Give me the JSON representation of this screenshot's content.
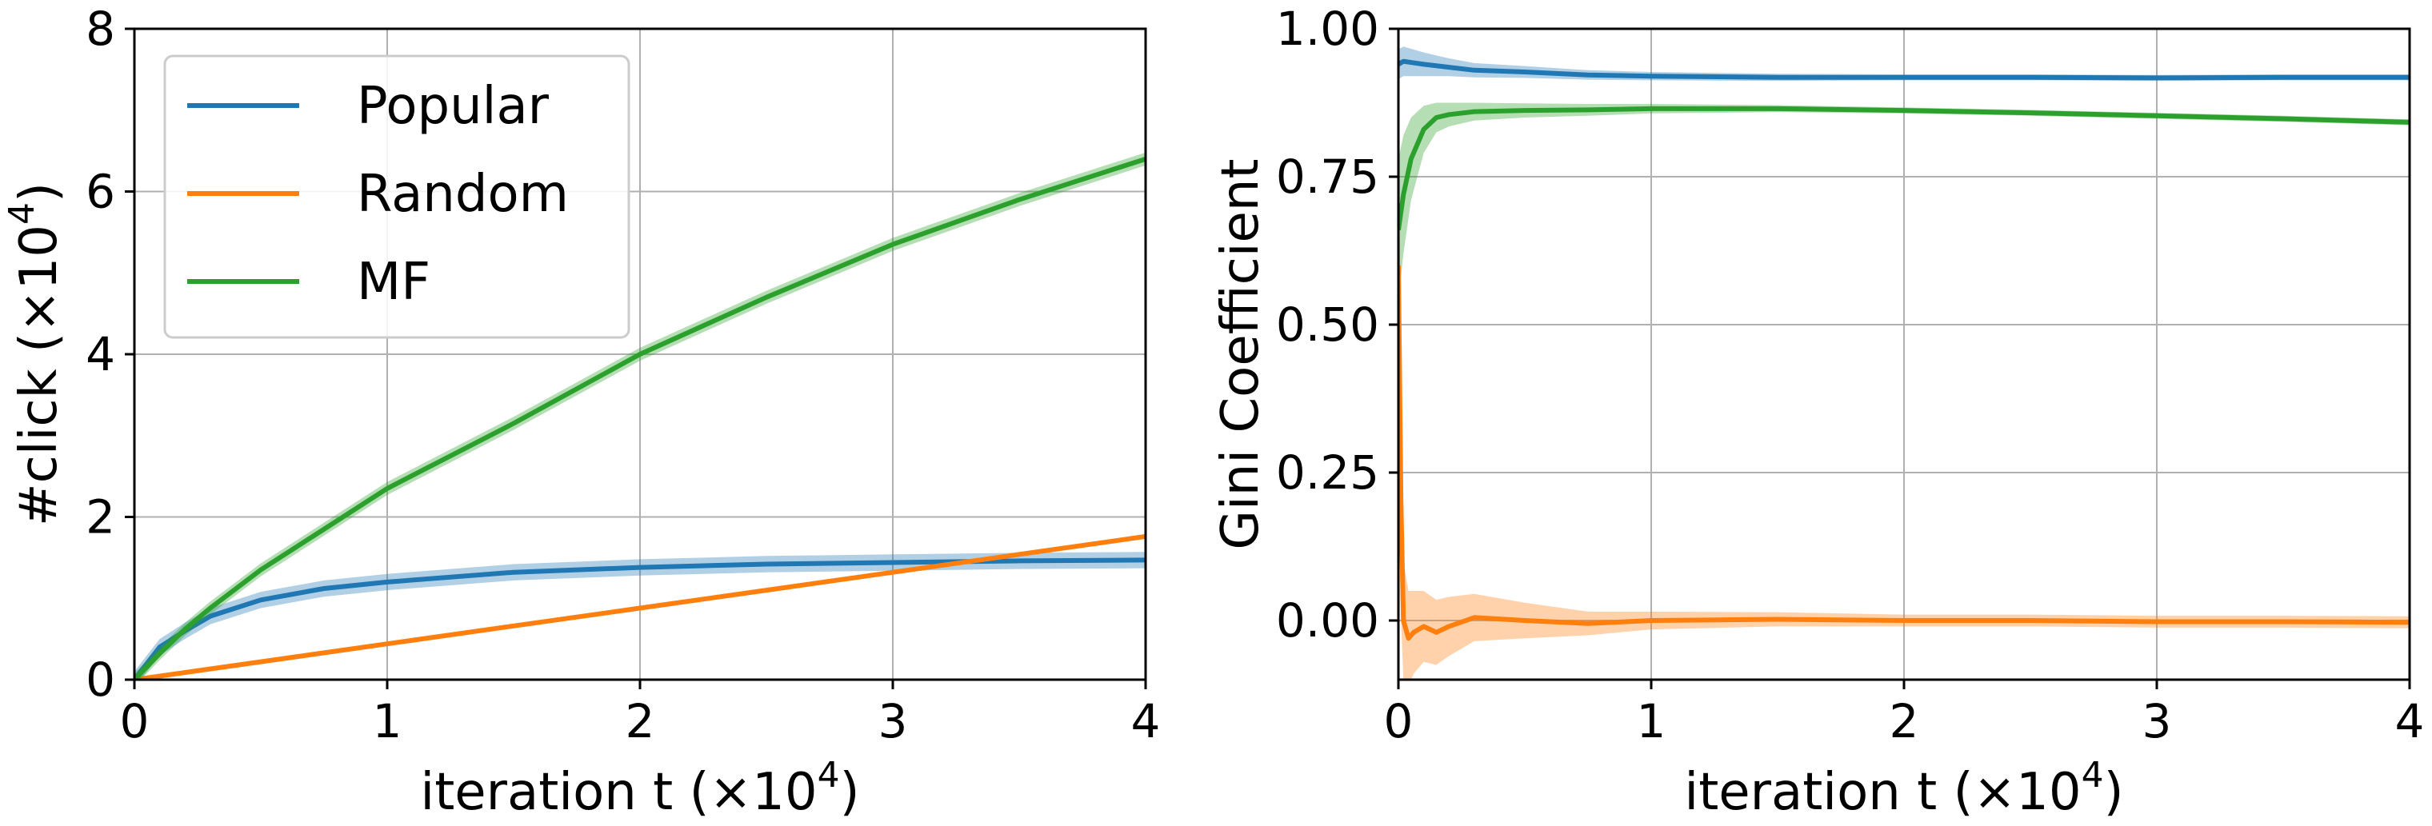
{
  "chart_data": [
    {
      "type": "line",
      "title": "",
      "xlabel": "iteration t (×10",
      "xlabel_sup": "4",
      "xlabel_end": ")",
      "ylabel": "#click (×10",
      "ylabel_sup": "4",
      "ylabel_end": ")",
      "xlim": [
        0,
        4
      ],
      "ylim": [
        0,
        8
      ],
      "xticks": [
        0,
        1,
        2,
        3,
        4
      ],
      "yticks": [
        0,
        2,
        4,
        6,
        8
      ],
      "grid": true,
      "legend": "top-left",
      "series": [
        {
          "name": "Popular",
          "color": "#1f77b4",
          "x": [
            0,
            0.1,
            0.2,
            0.3,
            0.5,
            0.75,
            1.0,
            1.5,
            2.0,
            2.5,
            3.0,
            3.5,
            4.0
          ],
          "y": [
            0,
            0.4,
            0.6,
            0.78,
            0.98,
            1.12,
            1.2,
            1.32,
            1.38,
            1.42,
            1.44,
            1.46,
            1.47
          ],
          "band": 0.1
        },
        {
          "name": "Random",
          "color": "#ff7f0e",
          "x": [
            0,
            0.5,
            1.0,
            1.5,
            2.0,
            2.5,
            3.0,
            3.5,
            4.0
          ],
          "y": [
            0,
            0.22,
            0.44,
            0.66,
            0.88,
            1.1,
            1.32,
            1.54,
            1.76
          ],
          "band": 0.02
        },
        {
          "name": "MF",
          "color": "#2ca02c",
          "x": [
            0,
            0.1,
            0.2,
            0.3,
            0.5,
            0.75,
            1.0,
            1.5,
            2.0,
            2.5,
            3.0,
            3.5,
            4.0
          ],
          "y": [
            0,
            0.32,
            0.62,
            0.88,
            1.35,
            1.85,
            2.35,
            3.15,
            4.0,
            4.7,
            5.35,
            5.9,
            6.4
          ],
          "band": 0.08
        }
      ]
    },
    {
      "type": "line",
      "title": "",
      "xlabel": "iteration t (×10",
      "xlabel_sup": "4",
      "xlabel_end": ")",
      "ylabel": "Gini Coefficient",
      "xlim": [
        0,
        4
      ],
      "ylim": [
        -0.1,
        1.0
      ],
      "xticks": [
        0,
        1,
        2,
        3,
        4
      ],
      "yticks": [
        0.0,
        0.25,
        0.5,
        0.75,
        1.0
      ],
      "ytick_labels": [
        "0.00",
        "0.25",
        "0.50",
        "0.75",
        "1.00"
      ],
      "grid": true,
      "series": [
        {
          "name": "",
          "color": "#1f77b4",
          "x": [
            0,
            0.02,
            0.1,
            0.2,
            0.3,
            0.5,
            0.75,
            1.0,
            1.5,
            2.0,
            2.5,
            3.0,
            3.5,
            4.0
          ],
          "y": [
            0.94,
            0.945,
            0.94,
            0.935,
            0.93,
            0.927,
            0.922,
            0.92,
            0.918,
            0.918,
            0.918,
            0.917,
            0.918,
            0.918
          ],
          "band": [
            0.025,
            0.025,
            0.02,
            0.015,
            0.012,
            0.01,
            0.008,
            0.007,
            0.006,
            0.005,
            0.005,
            0.005,
            0.005,
            0.005
          ]
        },
        {
          "name": "",
          "color": "#2ca02c",
          "x": [
            0,
            0.02,
            0.05,
            0.1,
            0.15,
            0.2,
            0.3,
            0.5,
            0.75,
            1.0,
            1.5,
            2.0,
            2.5,
            3.0,
            3.5,
            4.0
          ],
          "y": [
            0.66,
            0.72,
            0.78,
            0.83,
            0.85,
            0.855,
            0.86,
            0.862,
            0.863,
            0.865,
            0.865,
            0.862,
            0.858,
            0.853,
            0.848,
            0.842
          ],
          "band": [
            0.12,
            0.1,
            0.07,
            0.04,
            0.025,
            0.02,
            0.015,
            0.012,
            0.01,
            0.008,
            0.006,
            0.005,
            0.005,
            0.005,
            0.005,
            0.005
          ]
        },
        {
          "name": "",
          "color": "#ff7f0e",
          "x": [
            0,
            0.01,
            0.02,
            0.04,
            0.06,
            0.1,
            0.15,
            0.2,
            0.3,
            0.5,
            0.75,
            1.0,
            1.5,
            2.0,
            2.5,
            3.0,
            3.5,
            4.0
          ],
          "y": [
            0.6,
            0.2,
            0.0,
            -0.03,
            -0.02,
            -0.01,
            -0.02,
            -0.01,
            0.005,
            0.0,
            -0.005,
            0.0,
            0.002,
            0.0,
            0.0,
            -0.002,
            -0.002,
            -0.003
          ],
          "band": [
            0.35,
            0.2,
            0.1,
            0.08,
            0.07,
            0.06,
            0.055,
            0.05,
            0.04,
            0.03,
            0.02,
            0.015,
            0.012,
            0.01,
            0.01,
            0.01,
            0.01,
            0.01
          ]
        }
      ]
    }
  ]
}
